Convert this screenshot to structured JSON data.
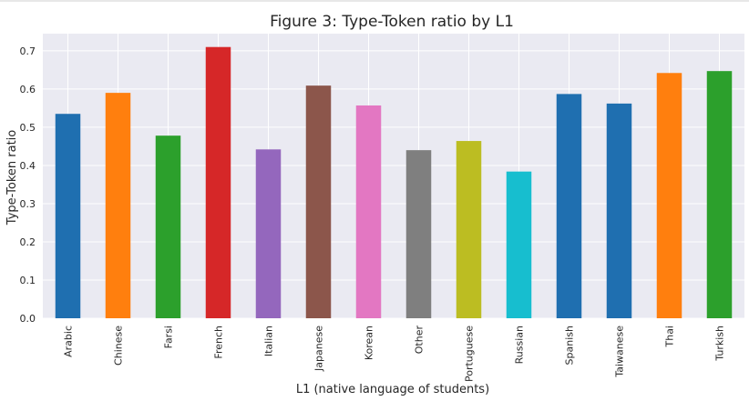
{
  "chart_data": {
    "type": "bar",
    "title": "Figure 3: Type-Token ratio by L1",
    "xlabel": "L1 (native language of students)",
    "ylabel": "Type-Token ratio",
    "ylim": [
      0,
      0.745
    ],
    "yticks": [
      "0.0",
      "0.1",
      "0.2",
      "0.3",
      "0.4",
      "0.5",
      "0.6",
      "0.7"
    ],
    "grid": true,
    "categories": [
      "Arabic",
      "Chinese",
      "Farsi",
      "French",
      "Italian",
      "Japanese",
      "Korean",
      "Other",
      "Portuguese",
      "Russian",
      "Spanish",
      "Taiwanese",
      "Thai",
      "Turkish"
    ],
    "values": [
      0.535,
      0.59,
      0.478,
      0.71,
      0.442,
      0.609,
      0.557,
      0.44,
      0.464,
      0.384,
      0.587,
      0.562,
      0.642,
      0.647
    ],
    "colors": [
      "#1f6fb0",
      "#ff7f0e",
      "#2ca02c",
      "#d62728",
      "#9467bd",
      "#8c564b",
      "#e377c2",
      "#7f7f7f",
      "#bcbd22",
      "#17becf",
      "#1f6fb0",
      "#1f6fb0",
      "#ff7f0e",
      "#2ca02c"
    ],
    "plot_bg": "#eaeaf2",
    "grid_color": "#ffffff"
  }
}
